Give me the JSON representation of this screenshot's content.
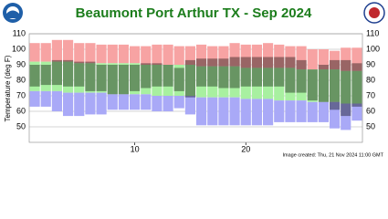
{
  "chart_data": {
    "type": "range-bands",
    "title": "Beaumont Port Arthur TX - Sep 2024",
    "y_label": "Temperature (deg F)",
    "footer": "Image created: Thu, 21 Nov 2024 11:00 GMT",
    "x": [
      1,
      2,
      3,
      4,
      5,
      6,
      7,
      8,
      9,
      10,
      11,
      12,
      13,
      14,
      15,
      16,
      17,
      18,
      19,
      20,
      21,
      22,
      23,
      24,
      25,
      26,
      27,
      28,
      29,
      30
    ],
    "xlim": [
      0.5,
      30.5
    ],
    "xticks": [
      10,
      20
    ],
    "ylim": [
      40,
      110
    ],
    "yticks": [
      50,
      60,
      70,
      80,
      90,
      100,
      110
    ],
    "grid": true,
    "series": [
      {
        "color": "#f7a3a3",
        "values": [
          104,
          104,
          106,
          106,
          104,
          104,
          103,
          103,
          103,
          102,
          102,
          103,
          103,
          102,
          102,
          103,
          102,
          102,
          104,
          103,
          103,
          104,
          103,
          102,
          102,
          100,
          100,
          99,
          101,
          101
        ]
      },
      {
        "color": "#a8f0a0",
        "values": [
          92,
          92,
          92,
          92,
          91,
          91,
          91,
          91,
          91,
          91,
          90,
          90,
          90,
          90,
          90,
          89,
          89,
          89,
          89,
          88,
          88,
          88,
          88,
          88,
          87,
          87,
          87,
          87,
          86,
          86
        ]
      },
      {
        "values": [
          73,
          73,
          73,
          72,
          72,
          72,
          72,
          71,
          71,
          71,
          71,
          70,
          70,
          70,
          70,
          69,
          69,
          69,
          69,
          68,
          68,
          68,
          67,
          67,
          67,
          66,
          66,
          66,
          65,
          65
        ]
      },
      {
        "color": "#a9a9f7",
        "values": [
          63,
          63,
          60,
          57,
          57,
          58,
          58,
          61,
          61,
          61,
          61,
          60,
          60,
          62,
          58,
          51,
          51,
          51,
          51,
          51,
          51,
          51,
          53,
          53,
          53,
          53,
          53,
          49,
          48,
          54
        ]
      },
      {
        "color": "rgba(0,0,0,0.38)",
        "values": [
          90,
          90,
          93,
          93,
          92,
          92,
          90,
          90,
          90,
          90,
          91,
          91,
          90,
          88,
          93,
          94,
          94,
          94,
          95,
          95,
          95,
          95,
          95,
          95,
          93,
          87,
          90,
          93,
          93,
          91
        ]
      },
      {
        "values": [
          76,
          77,
          77,
          76,
          76,
          73,
          73,
          71,
          71,
          73,
          75,
          76,
          76,
          73,
          69,
          76,
          76,
          75,
          75,
          76,
          76,
          76,
          76,
          72,
          72,
          67,
          66,
          61,
          57,
          63
        ]
      }
    ]
  }
}
